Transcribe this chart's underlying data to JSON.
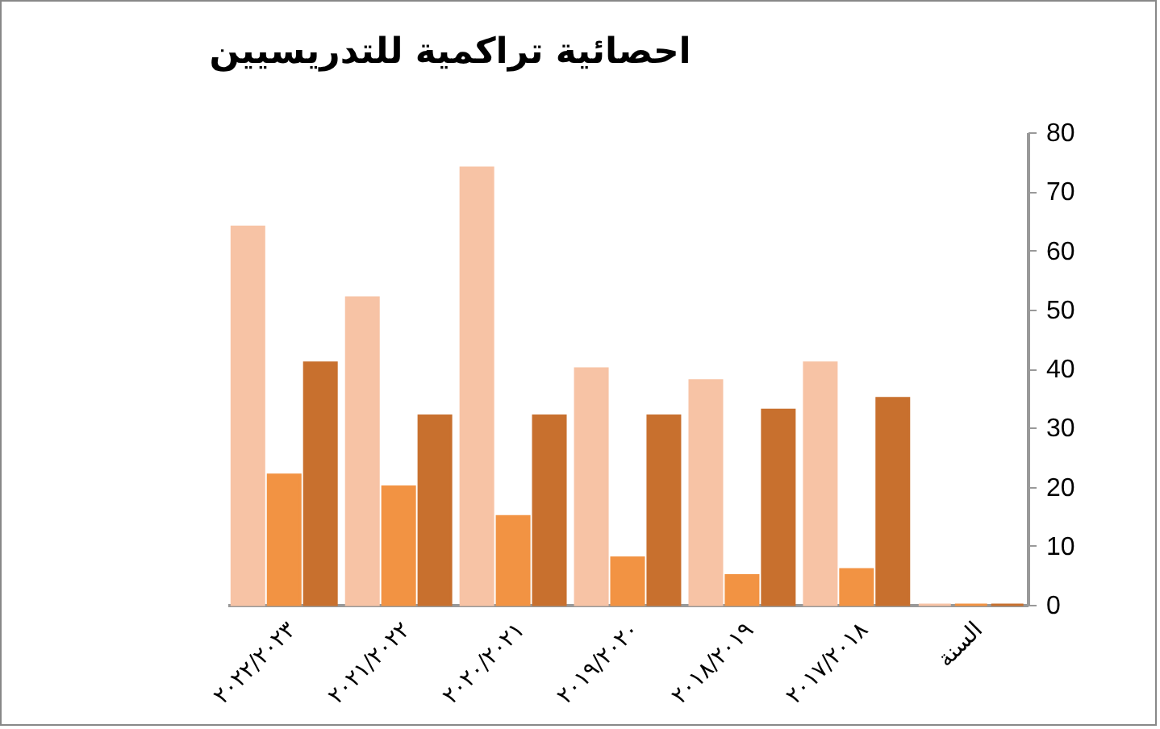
{
  "chart_data": {
    "type": "bar",
    "title": "احصائية تراكمية للتدريسيين",
    "categories": [
      "٢٠٢٢/٢٠٢٣",
      "٢٠٢١/٢٠٢٢",
      "٢٠٢٠/٢٠٢١",
      "٢٠١٩/٢٠٢٠",
      "٢٠١٨/٢٠١٩",
      "٢٠١٧/٢٠١٨",
      "السنة"
    ],
    "series": [
      {
        "color": "#f7c3a5",
        "values": [
          64,
          52,
          74,
          40,
          38,
          41,
          0
        ]
      },
      {
        "color": "#f29343",
        "values": [
          22,
          20,
          15,
          8,
          5,
          6,
          0
        ]
      },
      {
        "color": "#c8702e",
        "values": [
          41,
          32,
          32,
          32,
          33,
          35,
          0
        ]
      }
    ],
    "ylim": [
      0,
      80
    ],
    "yticks": [
      0,
      10,
      20,
      30,
      40,
      50,
      60,
      70,
      80
    ],
    "grid": false,
    "legend": false
  }
}
